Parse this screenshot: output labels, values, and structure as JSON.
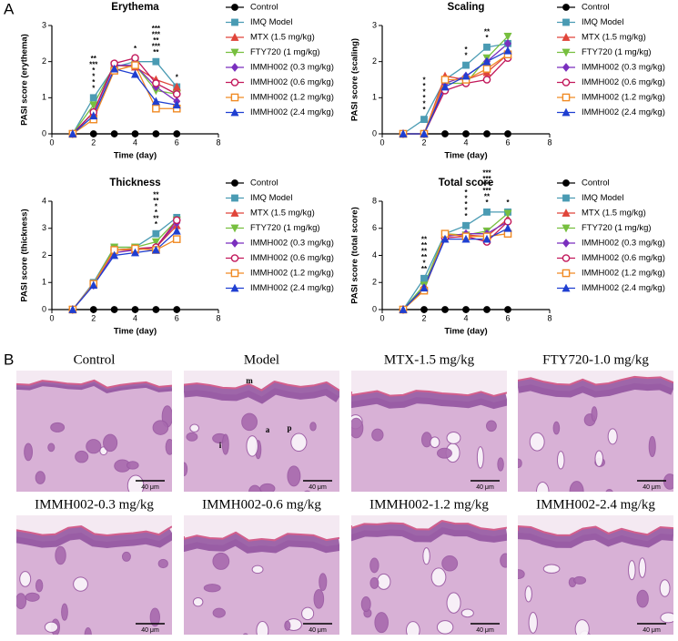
{
  "panel_labels": [
    "A",
    "B"
  ],
  "chart_data": [
    {
      "type": "line",
      "title": "Erythema",
      "x_label": "Time (day)",
      "y_label": "PASI score (erythema)",
      "xlim": [
        0,
        8
      ],
      "xticks": [
        0,
        2,
        4,
        6,
        8
      ],
      "ylim": [
        0,
        3
      ],
      "yticks": [
        0,
        1,
        2,
        3
      ],
      "x": [
        1,
        2,
        3,
        4,
        5,
        6
      ],
      "series": [
        {
          "name": "Control",
          "color": "#000000",
          "marker": "circle",
          "values": [
            0,
            0,
            0,
            0,
            0,
            0
          ]
        },
        {
          "name": "IMQ Model",
          "color": "#4a9bb3",
          "marker": "square",
          "values": [
            0,
            1.0,
            1.85,
            2.0,
            2.0,
            1.3
          ]
        },
        {
          "name": "MTX (1.5 mg/kg)",
          "color": "#e0453a",
          "marker": "triangle",
          "values": [
            0,
            0.6,
            1.9,
            1.85,
            1.5,
            1.3
          ],
          "stars": [
            null,
            "*",
            null,
            null,
            null,
            null
          ]
        },
        {
          "name": "FTY720 (1 mg/kg)",
          "color": "#77bf3f",
          "marker": "triangle-down",
          "values": [
            0,
            0.8,
            1.9,
            1.9,
            1.2,
            1.1
          ],
          "stars": [
            null,
            "*",
            null,
            null,
            "**",
            null
          ]
        },
        {
          "name": "IMMH002 (0.3 mg/kg)",
          "color": "#7a2fbe",
          "marker": "diamond",
          "values": [
            0,
            0.6,
            1.9,
            1.9,
            1.3,
            0.9
          ],
          "stars": [
            null,
            "*",
            null,
            null,
            "***",
            null
          ]
        },
        {
          "name": "IMMH002 (0.6 mg/kg)",
          "color": "#c2185b",
          "marker": "circle-open",
          "values": [
            0,
            0.6,
            1.95,
            2.1,
            1.4,
            1.1
          ],
          "stars": [
            null,
            "*",
            null,
            null,
            "**",
            null
          ]
        },
        {
          "name": "IMMH002 (1.2 mg/kg)",
          "color": "#f08a24",
          "marker": "square-open",
          "values": [
            0,
            0.4,
            1.75,
            1.9,
            0.7,
            0.7
          ],
          "stars": [
            null,
            "***",
            null,
            "*",
            "***",
            "*"
          ]
        },
        {
          "name": "IMMH002 (2.4 mg/kg)",
          "color": "#1f3fd1",
          "marker": "triangle",
          "values": [
            0,
            0.5,
            1.8,
            1.65,
            0.9,
            0.8
          ],
          "stars": [
            null,
            "**",
            null,
            null,
            "***",
            null
          ]
        }
      ]
    },
    {
      "type": "line",
      "title": "Scaling",
      "x_label": "Time (day)",
      "y_label": "PASI score (scaling)",
      "xlim": [
        0,
        8
      ],
      "xticks": [
        0,
        2,
        4,
        6,
        8
      ],
      "ylim": [
        0,
        3
      ],
      "yticks": [
        0,
        1,
        2,
        3
      ],
      "x": [
        1,
        2,
        3,
        4,
        5,
        6
      ],
      "series": [
        {
          "name": "Control",
          "color": "#000000",
          "marker": "circle",
          "values": [
            0,
            0,
            0,
            0,
            0,
            0
          ]
        },
        {
          "name": "IMQ Model",
          "color": "#4a9bb3",
          "marker": "square",
          "values": [
            0,
            0.4,
            1.5,
            1.9,
            2.4,
            2.5
          ]
        },
        {
          "name": "MTX (1.5 mg/kg)",
          "color": "#e0453a",
          "marker": "triangle",
          "values": [
            0,
            0,
            1.6,
            1.5,
            1.7,
            2.2
          ],
          "stars": [
            null,
            "*",
            null,
            null,
            null,
            null
          ]
        },
        {
          "name": "FTY720 (1 mg/kg)",
          "color": "#77bf3f",
          "marker": "triangle-down",
          "values": [
            0,
            0,
            1.4,
            1.4,
            2.1,
            2.7
          ],
          "stars": [
            null,
            "*",
            null,
            "*",
            null,
            null
          ]
        },
        {
          "name": "IMMH002 (0.3 mg/kg)",
          "color": "#7a2fbe",
          "marker": "diamond",
          "values": [
            0,
            0,
            1.4,
            1.6,
            2.0,
            2.5
          ],
          "stars": [
            null,
            "*",
            null,
            null,
            "*",
            null
          ]
        },
        {
          "name": "IMMH002 (0.6 mg/kg)",
          "color": "#c2185b",
          "marker": "circle-open",
          "values": [
            0,
            0,
            1.2,
            1.4,
            1.5,
            2.1
          ],
          "stars": [
            null,
            "*",
            null,
            null,
            "**",
            null
          ]
        },
        {
          "name": "IMMH002 (1.2 mg/kg)",
          "color": "#f08a24",
          "marker": "square-open",
          "values": [
            0,
            0,
            1.5,
            1.5,
            1.8,
            2.2
          ],
          "stars": [
            null,
            "*",
            null,
            "*",
            null,
            null
          ]
        },
        {
          "name": "IMMH002 (2.4 mg/kg)",
          "color": "#1f3fd1",
          "marker": "triangle",
          "values": [
            0,
            0,
            1.3,
            1.6,
            2.0,
            2.3
          ],
          "stars": [
            null,
            "*",
            null,
            null,
            null,
            null
          ]
        }
      ]
    },
    {
      "type": "line",
      "title": "Thickness",
      "x_label": "Time (day)",
      "y_label": "PASI score (thickness)",
      "xlim": [
        0,
        8
      ],
      "xticks": [
        0,
        2,
        4,
        6,
        8
      ],
      "ylim": [
        0,
        4
      ],
      "yticks": [
        0,
        1,
        2,
        3,
        4
      ],
      "x": [
        1,
        2,
        3,
        4,
        5,
        6
      ],
      "series": [
        {
          "name": "Control",
          "color": "#000000",
          "marker": "circle",
          "values": [
            0,
            0,
            0,
            0,
            0,
            0
          ]
        },
        {
          "name": "IMQ Model",
          "color": "#4a9bb3",
          "marker": "square",
          "values": [
            0,
            1.0,
            2.3,
            2.3,
            2.8,
            3.4
          ]
        },
        {
          "name": "MTX (1.5 mg/kg)",
          "color": "#e0453a",
          "marker": "triangle",
          "values": [
            0,
            0.95,
            2.2,
            2.2,
            2.3,
            3.1
          ],
          "stars": [
            null,
            null,
            null,
            null,
            "*",
            null
          ]
        },
        {
          "name": "FTY720 (1 mg/kg)",
          "color": "#77bf3f",
          "marker": "triangle-down",
          "values": [
            0,
            0.95,
            2.3,
            2.3,
            2.5,
            3.3
          ],
          "stars": [
            null,
            null,
            null,
            null,
            "**",
            null
          ]
        },
        {
          "name": "IMMH002 (0.3 mg/kg)",
          "color": "#7a2fbe",
          "marker": "diamond",
          "values": [
            0,
            0.9,
            2.1,
            2.2,
            2.3,
            3.2
          ],
          "stars": [
            null,
            null,
            null,
            null,
            "*",
            null
          ]
        },
        {
          "name": "IMMH002 (0.6 mg/kg)",
          "color": "#c2185b",
          "marker": "circle-open",
          "values": [
            0,
            0.95,
            2.2,
            2.25,
            2.3,
            3.3
          ],
          "stars": [
            null,
            null,
            null,
            null,
            "*",
            null
          ]
        },
        {
          "name": "IMMH002 (1.2 mg/kg)",
          "color": "#f08a24",
          "marker": "square-open",
          "values": [
            0,
            0.95,
            2.2,
            2.25,
            2.2,
            2.6
          ],
          "stars": [
            null,
            null,
            null,
            null,
            "**",
            null
          ]
        },
        {
          "name": "IMMH002 (2.4 mg/kg)",
          "color": "#1f3fd1",
          "marker": "triangle",
          "values": [
            0,
            0.9,
            2.0,
            2.1,
            2.2,
            2.9
          ],
          "stars": [
            null,
            null,
            null,
            null,
            "**",
            null
          ]
        }
      ]
    },
    {
      "type": "line",
      "title": "Total score",
      "x_label": "Time (day)",
      "y_label": "PASI score (total score)",
      "xlim": [
        0,
        8
      ],
      "xticks": [
        0,
        2,
        4,
        6,
        8
      ],
      "ylim": [
        0,
        8
      ],
      "yticks": [
        0,
        2,
        4,
        6,
        8
      ],
      "x": [
        1,
        2,
        3,
        4,
        5,
        6
      ],
      "series": [
        {
          "name": "Control",
          "color": "#000000",
          "marker": "circle",
          "values": [
            0,
            0,
            0,
            0,
            0,
            0
          ]
        },
        {
          "name": "IMQ Model",
          "color": "#4a9bb3",
          "marker": "square",
          "values": [
            0,
            2.3,
            5.6,
            6.2,
            7.2,
            7.2
          ]
        },
        {
          "name": "MTX (1.5 mg/kg)",
          "color": "#e0453a",
          "marker": "triangle",
          "values": [
            0,
            1.6,
            5.5,
            5.5,
            5.4,
            6.7
          ],
          "stars": [
            null,
            "**",
            null,
            null,
            "*",
            null
          ]
        },
        {
          "name": "FTY720 (1 mg/kg)",
          "color": "#77bf3f",
          "marker": "triangle-down",
          "values": [
            0,
            1.8,
            5.6,
            5.5,
            5.8,
            7.1
          ],
          "stars": [
            null,
            "*",
            null,
            "*",
            "**",
            null
          ]
        },
        {
          "name": "IMMH002 (0.3 mg/kg)",
          "color": "#7a2fbe",
          "marker": "diamond",
          "values": [
            0,
            1.6,
            5.4,
            5.6,
            5.6,
            6.5
          ],
          "stars": [
            null,
            "**",
            null,
            "*",
            "***",
            null
          ]
        },
        {
          "name": "IMMH002 (0.6 mg/kg)",
          "color": "#c2185b",
          "marker": "circle-open",
          "values": [
            0,
            1.5,
            5.3,
            5.4,
            5.0,
            6.5
          ],
          "stars": [
            null,
            "**",
            null,
            "*",
            "***",
            null
          ]
        },
        {
          "name": "IMMH002 (1.2 mg/kg)",
          "color": "#f08a24",
          "marker": "square-open",
          "values": [
            0,
            1.4,
            5.6,
            5.4,
            5.4,
            5.6
          ],
          "stars": [
            null,
            "**",
            null,
            "*",
            "***",
            "*"
          ]
        },
        {
          "name": "IMMH002 (2.4 mg/kg)",
          "color": "#1f3fd1",
          "marker": "triangle",
          "values": [
            0,
            1.6,
            5.2,
            5.2,
            5.2,
            6.0
          ],
          "stars": [
            null,
            "**",
            null,
            "*",
            "***",
            null
          ]
        }
      ]
    }
  ],
  "histology": [
    {
      "title": "Control",
      "scale_bar": "40 μm"
    },
    {
      "title": "Model",
      "scale_bar": "40 μm",
      "labels": [
        "m",
        "a",
        "p",
        "i"
      ]
    },
    {
      "title": "MTX-1.5 mg/kg",
      "scale_bar": "40 μm"
    },
    {
      "title": "FTY720-1.0 mg/kg",
      "scale_bar": "40 μm"
    },
    {
      "title": "IMMH002-0.3 mg/kg",
      "scale_bar": "40 μm"
    },
    {
      "title": "IMMH002-0.6 mg/kg",
      "scale_bar": "40 μm"
    },
    {
      "title": "IMMH002-1.2 mg/kg",
      "scale_bar": "40 μm"
    },
    {
      "title": "IMMH002-2.4 mg/kg",
      "scale_bar": "40 μm"
    }
  ]
}
